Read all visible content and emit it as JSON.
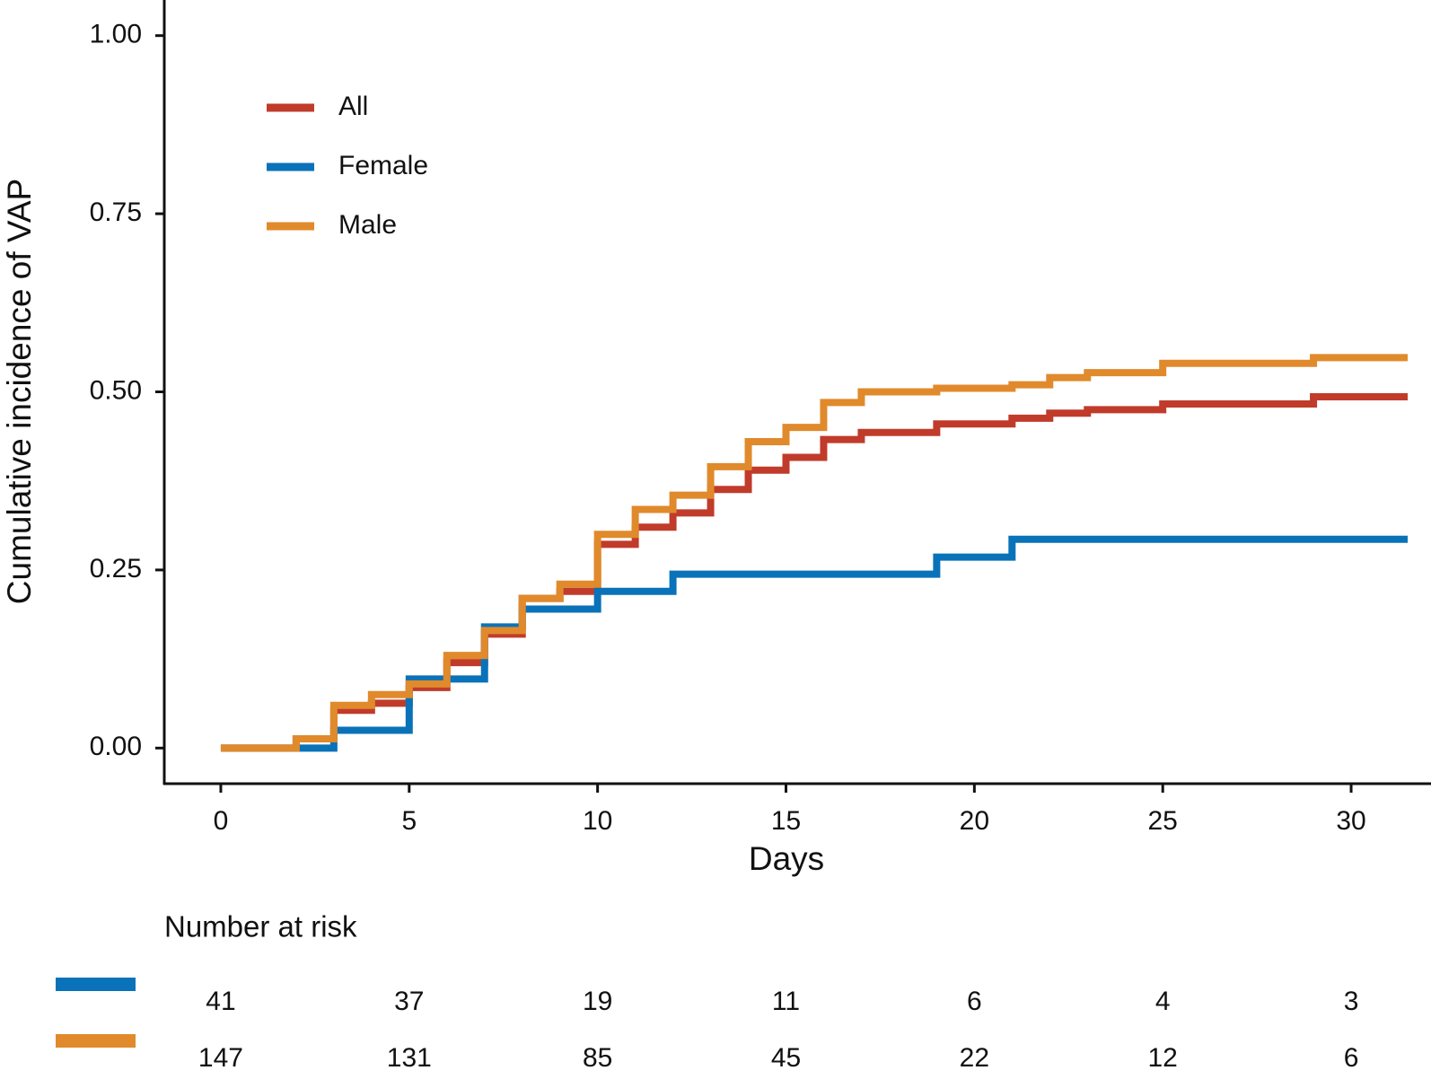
{
  "chart_data": {
    "type": "step",
    "xlabel": "Days",
    "ylabel": "Cumulative incidence of VAP",
    "xlim": [
      -1.5,
      31.5
    ],
    "ylim": [
      -0.05,
      1.05
    ],
    "xticks": [
      0,
      5,
      10,
      15,
      20,
      25,
      30
    ],
    "yticks": [
      {
        "value": 0,
        "label": "0.00"
      },
      {
        "value": 0.25,
        "label": "0.25"
      },
      {
        "value": 0.5,
        "label": "0.50"
      },
      {
        "value": 0.75,
        "label": "0.75"
      },
      {
        "value": 1,
        "label": "1.00"
      }
    ],
    "legend": "upper left",
    "series": [
      {
        "name": "All",
        "color": "#c13b2a",
        "x": [
          0,
          2,
          3,
          4,
          5,
          6,
          7,
          8,
          9,
          10,
          11,
          12,
          13,
          14,
          15,
          16,
          17,
          19,
          21,
          22,
          23,
          25,
          29
        ],
        "values": [
          0,
          0.013,
          0.053,
          0.063,
          0.085,
          0.12,
          0.16,
          0.21,
          0.22,
          0.286,
          0.31,
          0.33,
          0.363,
          0.39,
          0.408,
          0.433,
          0.443,
          0.455,
          0.463,
          0.47,
          0.475,
          0.483,
          0.493
        ]
      },
      {
        "name": "Female",
        "color": "#0a72b8",
        "x": [
          0,
          3,
          5,
          7,
          8,
          10,
          12,
          19,
          21
        ],
        "values": [
          0,
          0.025,
          0.097,
          0.17,
          0.195,
          0.22,
          0.244,
          0.268,
          0.293
        ]
      },
      {
        "name": "Male",
        "color": "#e08a2c",
        "x": [
          0,
          2,
          3,
          4,
          5,
          6,
          7,
          8,
          9,
          10,
          11,
          12,
          13,
          14,
          15,
          16,
          17,
          19,
          21,
          22,
          23,
          25,
          29
        ],
        "values": [
          0,
          0.013,
          0.06,
          0.075,
          0.09,
          0.13,
          0.165,
          0.21,
          0.23,
          0.3,
          0.335,
          0.355,
          0.395,
          0.43,
          0.45,
          0.485,
          0.5,
          0.505,
          0.51,
          0.52,
          0.527,
          0.54,
          0.548
        ]
      }
    ],
    "risk_table": {
      "title": "Number at risk",
      "rows": [
        {
          "color": "#0a72b8",
          "values": [
            41,
            37,
            19,
            11,
            6,
            4,
            3
          ]
        },
        {
          "color": "#e08a2c",
          "values": [
            147,
            131,
            85,
            45,
            22,
            12,
            6
          ]
        }
      ]
    }
  }
}
